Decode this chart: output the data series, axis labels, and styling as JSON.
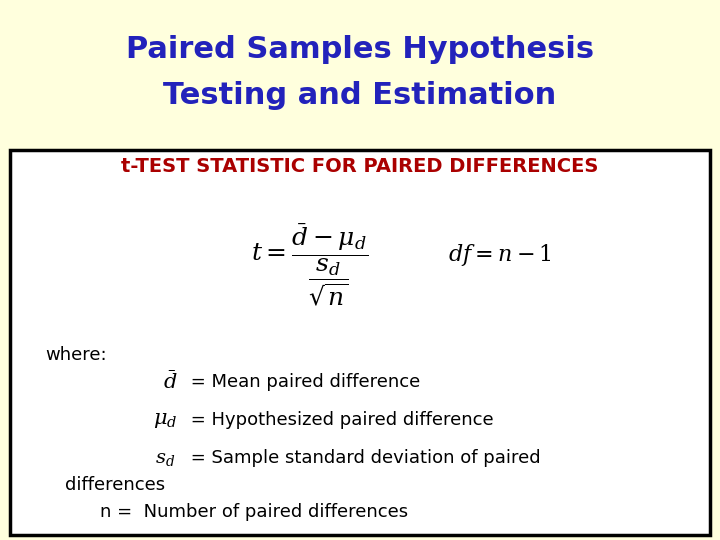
{
  "title_line1": "Paired Samples Hypothesis",
  "title_line2": "Testing and Estimation",
  "title_color": "#2222bb",
  "title_bg_color": "#ffffdd",
  "box_bg_color": "#ffffff",
  "box_border_color": "#000000",
  "subtitle": "t-TEST STATISTIC FOR PAIRED DIFFERENCES",
  "subtitle_color": "#aa0000",
  "where_text": "where:",
  "item1_text": " = Mean paired difference",
  "item2_text": " = Hypothesized paired difference",
  "item3_text": " = Sample standard deviation of paired",
  "item3_text2": "differences",
  "item4_text": "n =  Number of paired differences",
  "text_color": "#000000",
  "formula_color": "#000000",
  "title_fontsize": 22,
  "subtitle_fontsize": 14,
  "formula_fontsize": 18,
  "body_fontsize": 13
}
